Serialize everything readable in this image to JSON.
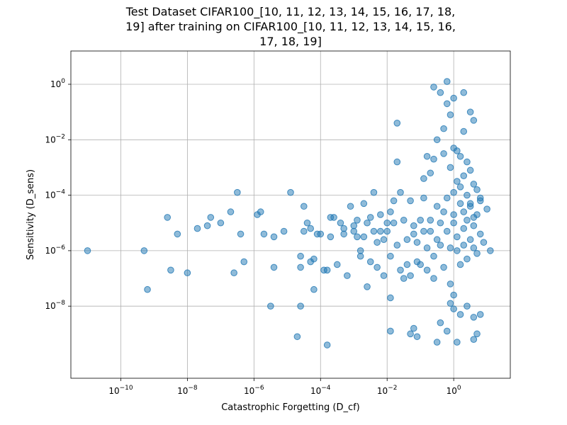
{
  "chart_data": {
    "type": "scatter",
    "title": "Test Dataset CIFAR100_[10, 11, 12, 13, 14, 15, 16, 17, 18, 19] after training on CIFAR100_[10, 11, 12, 13, 14, 15, 16, 17, 18, 19]",
    "title_lines": [
      "Test Dataset CIFAR100_[10, 11, 12, 13, 14, 15, 16, 17, 18,",
      "19] after training on CIFAR100_[10, 11, 12, 13, 14, 15, 16,",
      "17, 18, 19]"
    ],
    "xlabel": "Catastrophic Forgetting (D_cf)",
    "ylabel": "Sensitivity (D_sens)",
    "xscale": "log",
    "yscale": "log",
    "xlim_log10": [
      -11.5,
      1.7
    ],
    "ylim_log10": [
      -10.6,
      1.2
    ],
    "x_tick_exponents": [
      -10,
      -8,
      -6,
      -4,
      -2,
      0
    ],
    "y_tick_exponents": [
      -8,
      -6,
      -4,
      -2,
      0
    ],
    "tick_base": "10",
    "grid": true,
    "marker_color": "#1f77b4",
    "marker_alpha": 0.5,
    "note": "points given as [log10(x), log10(y)]",
    "points_log10": [
      [
        -11.0,
        -6.0
      ],
      [
        -9.3,
        -6.0
      ],
      [
        -9.2,
        -7.4
      ],
      [
        -8.6,
        -4.8
      ],
      [
        -8.5,
        -6.7
      ],
      [
        -8.3,
        -5.4
      ],
      [
        -8.0,
        -6.8
      ],
      [
        -7.7,
        -5.2
      ],
      [
        -7.4,
        -5.1
      ],
      [
        -7.3,
        -4.8
      ],
      [
        -7.0,
        -5.0
      ],
      [
        -6.7,
        -4.6
      ],
      [
        -6.6,
        -6.8
      ],
      [
        -6.5,
        -3.9
      ],
      [
        -6.4,
        -5.4
      ],
      [
        -6.3,
        -6.4
      ],
      [
        -5.9,
        -4.7
      ],
      [
        -5.8,
        -4.6
      ],
      [
        -5.7,
        -5.4
      ],
      [
        -5.5,
        -8.0
      ],
      [
        -5.4,
        -6.6
      ],
      [
        -5.4,
        -5.5
      ],
      [
        -5.1,
        -5.3
      ],
      [
        -4.9,
        -3.9
      ],
      [
        -4.7,
        -9.1
      ],
      [
        -4.6,
        -6.2
      ],
      [
        -4.6,
        -6.6
      ],
      [
        -4.6,
        -8.0
      ],
      [
        -4.5,
        -5.3
      ],
      [
        -4.5,
        -4.4
      ],
      [
        -4.4,
        -5.0
      ],
      [
        -4.3,
        -5.2
      ],
      [
        -4.3,
        -6.4
      ],
      [
        -4.2,
        -7.4
      ],
      [
        -4.2,
        -6.3
      ],
      [
        -4.1,
        -5.4
      ],
      [
        -4.0,
        -5.4
      ],
      [
        -3.9,
        -6.7
      ],
      [
        -3.8,
        -9.4
      ],
      [
        -3.8,
        -6.7
      ],
      [
        -3.7,
        -5.5
      ],
      [
        -3.7,
        -4.8
      ],
      [
        -3.6,
        -4.8
      ],
      [
        -3.5,
        -6.5
      ],
      [
        -3.4,
        -5.0
      ],
      [
        -3.3,
        -5.2
      ],
      [
        -3.3,
        -5.4
      ],
      [
        -3.2,
        -6.9
      ],
      [
        -3.1,
        -4.4
      ],
      [
        -3.0,
        -5.1
      ],
      [
        -3.0,
        -5.3
      ],
      [
        -2.9,
        -4.9
      ],
      [
        -2.9,
        -5.5
      ],
      [
        -2.8,
        -6.0
      ],
      [
        -2.8,
        -6.2
      ],
      [
        -2.7,
        -5.5
      ],
      [
        -2.7,
        -4.3
      ],
      [
        -2.6,
        -5.0
      ],
      [
        -2.6,
        -7.3
      ],
      [
        -2.5,
        -4.8
      ],
      [
        -2.5,
        -6.4
      ],
      [
        -2.4,
        -3.9
      ],
      [
        -2.4,
        -5.3
      ],
      [
        -2.3,
        -5.7
      ],
      [
        -2.3,
        -6.6
      ],
      [
        -2.2,
        -5.3
      ],
      [
        -2.2,
        -4.7
      ],
      [
        -2.1,
        -5.6
      ],
      [
        -2.1,
        -6.9
      ],
      [
        -2.0,
        -5.0
      ],
      [
        -2.0,
        -5.3
      ],
      [
        -1.9,
        -7.7
      ],
      [
        -1.9,
        -4.6
      ],
      [
        -1.9,
        -6.2
      ],
      [
        -1.8,
        -4.2
      ],
      [
        -1.8,
        -5.0
      ],
      [
        -1.7,
        -5.8
      ],
      [
        -1.6,
        -6.7
      ],
      [
        -1.6,
        -3.9
      ],
      [
        -1.5,
        -4.9
      ],
      [
        -1.5,
        -7.0
      ],
      [
        -1.4,
        -5.6
      ],
      [
        -1.4,
        -6.5
      ],
      [
        -1.3,
        -6.9
      ],
      [
        -1.3,
        -4.2
      ],
      [
        -1.2,
        -5.1
      ],
      [
        -1.2,
        -5.4
      ],
      [
        -1.1,
        -6.4
      ],
      [
        -1.1,
        -5.7
      ],
      [
        -1.0,
        -6.5
      ],
      [
        -1.0,
        -4.9
      ],
      [
        -0.9,
        -5.3
      ],
      [
        -0.9,
        -4.1
      ],
      [
        -0.8,
        -5.9
      ],
      [
        -0.8,
        -6.7
      ],
      [
        -0.7,
        -4.9
      ],
      [
        -0.7,
        -5.3
      ],
      [
        -0.6,
        -6.2
      ],
      [
        -0.6,
        -7.0
      ],
      [
        -0.5,
        -4.4
      ],
      [
        -0.5,
        -5.6
      ],
      [
        -0.4,
        -5.0
      ],
      [
        -0.4,
        -5.8
      ],
      [
        -0.3,
        -4.6
      ],
      [
        -0.3,
        -6.6
      ],
      [
        -0.2,
        -5.3
      ],
      [
        -0.2,
        -4.1
      ],
      [
        -0.1,
        -5.9
      ],
      [
        -0.1,
        -7.2
      ],
      [
        0.0,
        -5.0
      ],
      [
        0.0,
        -4.7
      ],
      [
        0.1,
        -6.0
      ],
      [
        0.1,
        -5.5
      ],
      [
        0.2,
        -4.3
      ],
      [
        0.2,
        -6.5
      ],
      [
        0.3,
        -5.2
      ],
      [
        0.3,
        -5.8
      ],
      [
        0.4,
        -4.9
      ],
      [
        0.4,
        -6.3
      ],
      [
        0.5,
        -5.6
      ],
      [
        0.5,
        -4.4
      ],
      [
        0.6,
        -5.1
      ],
      [
        0.6,
        -5.9
      ],
      [
        0.7,
        -4.7
      ],
      [
        0.7,
        -6.1
      ],
      [
        0.8,
        -5.4
      ],
      [
        0.8,
        -4.1
      ],
      [
        0.9,
        -5.7
      ],
      [
        1.0,
        -4.5
      ],
      [
        1.1,
        -6.0
      ],
      [
        -1.7,
        -1.4
      ],
      [
        -1.7,
        -2.8
      ],
      [
        -0.3,
        -1.6
      ],
      [
        -0.2,
        -0.7
      ],
      [
        -0.1,
        -1.1
      ],
      [
        0.0,
        -2.3
      ],
      [
        -0.6,
        -0.1
      ],
      [
        -0.4,
        -0.3
      ],
      [
        -0.2,
        0.1
      ],
      [
        0.5,
        -1.0
      ],
      [
        0.6,
        -1.3
      ],
      [
        0.3,
        -1.7
      ],
      [
        0.1,
        -2.4
      ],
      [
        0.2,
        -2.6
      ],
      [
        0.4,
        -2.8
      ],
      [
        -0.1,
        -3.0
      ],
      [
        0.5,
        -3.1
      ],
      [
        0.0,
        -0.5
      ],
      [
        -0.5,
        -2.0
      ],
      [
        -0.3,
        -2.5
      ],
      [
        -0.6,
        -2.7
      ],
      [
        -0.8,
        -2.6
      ],
      [
        -0.9,
        -3.4
      ],
      [
        -0.7,
        -3.2
      ],
      [
        0.3,
        -3.3
      ],
      [
        0.2,
        -3.7
      ],
      [
        0.7,
        -3.8
      ],
      [
        0.4,
        -4.0
      ],
      [
        0.6,
        -3.6
      ],
      [
        0.1,
        -3.5
      ],
      [
        0.5,
        -4.3
      ],
      [
        0.6,
        -4.8
      ],
      [
        0.3,
        -4.6
      ],
      [
        0.0,
        -3.9
      ],
      [
        0.8,
        -4.2
      ],
      [
        0.3,
        -0.3
      ],
      [
        -1.9,
        -8.9
      ],
      [
        -1.3,
        -9.0
      ],
      [
        -0.5,
        -9.3
      ],
      [
        -0.2,
        -8.9
      ],
      [
        0.0,
        -8.1
      ],
      [
        0.4,
        -8.0
      ],
      [
        0.6,
        -8.4
      ],
      [
        0.7,
        -9.0
      ],
      [
        0.6,
        -9.2
      ],
      [
        -0.4,
        -8.6
      ],
      [
        -1.1,
        -9.1
      ],
      [
        -1.2,
        -8.8
      ],
      [
        0.2,
        -8.3
      ],
      [
        0.8,
        -8.3
      ],
      [
        0.1,
        -9.3
      ],
      [
        0.0,
        -7.6
      ],
      [
        -0.1,
        -7.9
      ]
    ]
  }
}
